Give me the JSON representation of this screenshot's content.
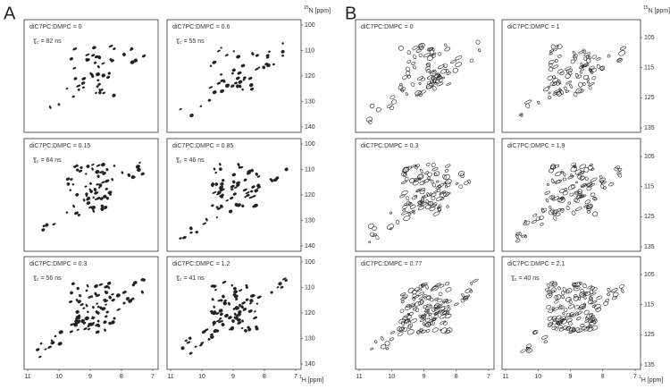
{
  "panels": [
    {
      "letter": "A",
      "n_axis": {
        "sup": "15",
        "text": "N [ppm]"
      },
      "h_axis": {
        "sup": "1",
        "text": "H [ppm]"
      },
      "yticks": [
        100,
        110,
        120,
        130,
        140
      ],
      "xticks": [
        11,
        10,
        9,
        8,
        7
      ],
      "spectra": [
        {
          "ratio": "diC7PC:DMPC = 0",
          "tau": {
            "symbol": "τ",
            "sub": "c",
            "text": "= 82 ns"
          }
        },
        {
          "ratio": "diC7PC:DMPC = 0.6",
          "tau": {
            "symbol": "τ",
            "sub": "c",
            "text": "= 55 ns"
          }
        },
        {
          "ratio": "diC7PC:DMPC = 0.15",
          "tau": {
            "symbol": "τ",
            "sub": "c",
            "text": "= 64 ns"
          }
        },
        {
          "ratio": "diC7PC:DMPC = 0.85",
          "tau": {
            "symbol": "τ",
            "sub": "c",
            "text": "= 46 ns"
          }
        },
        {
          "ratio": "diC7PC:DMPC = 0.3",
          "tau": {
            "symbol": "τ",
            "sub": "c",
            "text": "= 56 ns"
          }
        },
        {
          "ratio": "diC7PC:DMPC = 1.2",
          "tau": {
            "symbol": "τ",
            "sub": "c",
            "text": "= 41 ns"
          }
        }
      ]
    },
    {
      "letter": "B",
      "n_axis": {
        "sup": "15",
        "text": "N [ppm]"
      },
      "h_axis": {
        "sup": "1",
        "text": "H [ppm]"
      },
      "yticks": [
        105,
        115,
        125,
        135
      ],
      "xticks": [
        11,
        10,
        9,
        8,
        7
      ],
      "spectra": [
        {
          "ratio": "diC7PC:DMPC = 0"
        },
        {
          "ratio": "diC7PC:DMPC = 1"
        },
        {
          "ratio": "diC7PC:DMPC = 0.3"
        },
        {
          "ratio": "diC7PC:DMPC = 1.9"
        },
        {
          "ratio": "diC7PC:DMPC = 0.77"
        },
        {
          "ratio": "diC7PC:DMPC = 2.1",
          "tau": {
            "symbol": "τ",
            "sub": "c",
            "text": "= 40 ns"
          }
        }
      ]
    }
  ]
}
